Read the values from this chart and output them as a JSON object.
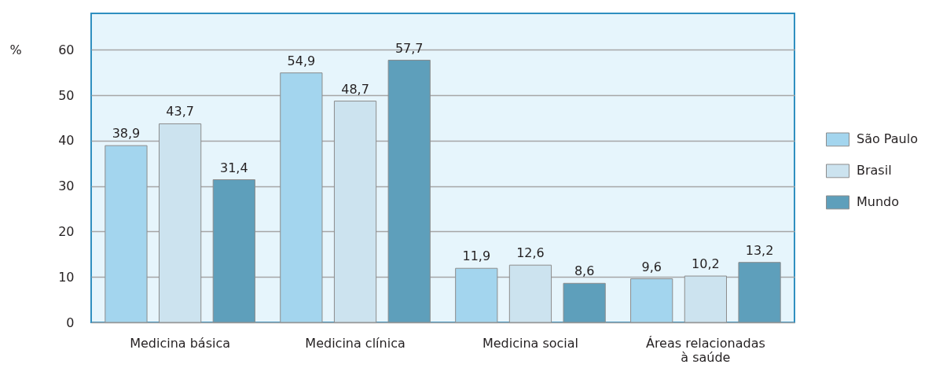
{
  "chart_data": {
    "type": "bar",
    "categories": [
      "Medicina básica",
      "Medicina clínica",
      "Medicina social",
      "Áreas relacionadas\nà saúde"
    ],
    "series": [
      {
        "name": "São Paulo",
        "color": "#a3d5ee",
        "values": [
          38.9,
          54.9,
          11.9,
          9.6
        ],
        "value_labels": [
          "38,9",
          "54,9",
          "11,9",
          "9,6"
        ]
      },
      {
        "name": "Brasil",
        "color": "#cce3ef",
        "values": [
          43.7,
          48.7,
          12.6,
          10.2
        ],
        "value_labels": [
          "43,7",
          "48,7",
          "12,6",
          "10,2"
        ]
      },
      {
        "name": "Mundo",
        "color": "#5e9fbb",
        "values": [
          31.4,
          57.7,
          8.6,
          13.2
        ],
        "value_labels": [
          "31,4",
          "57,7",
          "8,6",
          "13,2"
        ]
      }
    ],
    "ylabel": "%",
    "ylim": [
      0,
      68
    ],
    "yticks": [
      0,
      10,
      20,
      30,
      40,
      50,
      60
    ],
    "grid": "y",
    "legend": "right"
  }
}
